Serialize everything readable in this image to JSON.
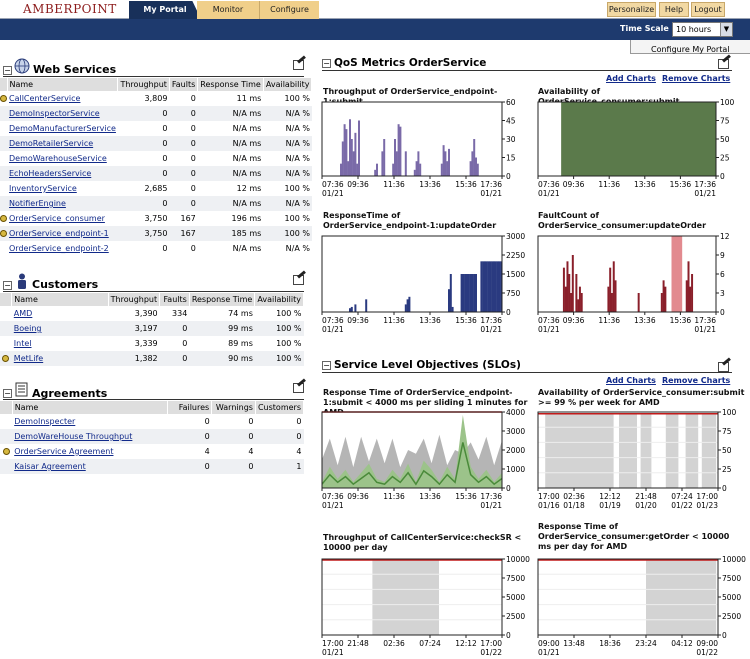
{
  "app": {
    "logo": "AMBERPOINT"
  },
  "tabs": [
    "My Portal",
    "Monitor",
    "Configure"
  ],
  "top_buttons": [
    "Personalize",
    "Help",
    "Logout"
  ],
  "time_scale": {
    "label": "Time Scale",
    "value": "10 hours"
  },
  "configure_link": "Configure My Portal",
  "web_services": {
    "title": "Web Services",
    "columns": [
      "Name",
      "Throughput",
      "Faults",
      "Response Time",
      "Availability"
    ],
    "rows": [
      {
        "status": true,
        "name": "CallCenterService",
        "throughput": "3,809",
        "faults": "0",
        "response": "11 ms",
        "availability": "100 %"
      },
      {
        "status": false,
        "name": "DemoInspectorService",
        "throughput": "0",
        "faults": "0",
        "response": "N/A ms",
        "availability": "N/A %"
      },
      {
        "status": false,
        "name": "DemoManufacturerService",
        "throughput": "0",
        "faults": "0",
        "response": "N/A ms",
        "availability": "N/A %"
      },
      {
        "status": false,
        "name": "DemoRetailerService",
        "throughput": "0",
        "faults": "0",
        "response": "N/A ms",
        "availability": "N/A %"
      },
      {
        "status": false,
        "name": "DemoWarehouseService",
        "throughput": "0",
        "faults": "0",
        "response": "N/A ms",
        "availability": "N/A %"
      },
      {
        "status": false,
        "name": "EchoHeadersService",
        "throughput": "0",
        "faults": "0",
        "response": "N/A ms",
        "availability": "N/A %"
      },
      {
        "status": false,
        "name": "InventoryService",
        "throughput": "2,685",
        "faults": "0",
        "response": "12 ms",
        "availability": "100 %"
      },
      {
        "status": false,
        "name": "NotifierEngine",
        "throughput": "0",
        "faults": "0",
        "response": "N/A ms",
        "availability": "N/A %"
      },
      {
        "status": true,
        "name": "OrderService_consumer",
        "throughput": "3,750",
        "faults": "167",
        "response": "196 ms",
        "availability": "100 %"
      },
      {
        "status": true,
        "name": "OrderService_endpoint-1",
        "throughput": "3,750",
        "faults": "167",
        "response": "185 ms",
        "availability": "100 %"
      },
      {
        "status": false,
        "name": "OrderService_endpoint-2",
        "throughput": "0",
        "faults": "0",
        "response": "N/A ms",
        "availability": "N/A %"
      }
    ]
  },
  "customers": {
    "title": "Customers",
    "columns": [
      "Name",
      "Throughput",
      "Faults",
      "Response Time",
      "Availability"
    ],
    "rows": [
      {
        "status": false,
        "name": "AMD",
        "throughput": "3,390",
        "faults": "334",
        "response": "74 ms",
        "availability": "100 %"
      },
      {
        "status": false,
        "name": "Boeing",
        "throughput": "3,197",
        "faults": "0",
        "response": "99 ms",
        "availability": "100 %"
      },
      {
        "status": false,
        "name": "Intel",
        "throughput": "3,339",
        "faults": "0",
        "response": "89 ms",
        "availability": "100 %"
      },
      {
        "status": true,
        "name": "MetLife",
        "throughput": "1,382",
        "faults": "0",
        "response": "90 ms",
        "availability": "100 %"
      }
    ]
  },
  "agreements": {
    "title": "Agreements",
    "columns": [
      "Name",
      "Failures",
      "Warnings",
      "Customers"
    ],
    "rows": [
      {
        "status": false,
        "name": "DemoInspecter",
        "failures": "0",
        "warnings": "0",
        "customers": "0"
      },
      {
        "status": false,
        "name": "DemoWareHouse Throughput",
        "failures": "0",
        "warnings": "0",
        "customers": "0"
      },
      {
        "status": true,
        "name": "OrderService Agreement",
        "failures": "4",
        "warnings": "4",
        "customers": "4"
      },
      {
        "status": false,
        "name": "Kaisar Agreement",
        "failures": "0",
        "warnings": "0",
        "customers": "1"
      }
    ]
  },
  "qos": {
    "title": "QoS Metrics OrderService",
    "add": "Add Charts",
    "remove": "Remove Charts"
  },
  "slo": {
    "title": "Service Level Objectives (SLOs)",
    "add": "Add Charts",
    "remove": "Remove Charts"
  },
  "chart_data": [
    {
      "id": "c1",
      "type": "bar",
      "title": "Throughput of OrderService_endpoint-1:submit",
      "color": "#7a6aa8",
      "x_ticks": [
        "07:36",
        "09:36",
        "11:36",
        "13:36",
        "15:36",
        "17:36"
      ],
      "x_date_left": "01/21",
      "x_date_right": "01/21",
      "y_ticks": [
        "60",
        "45",
        "30",
        "15",
        "0"
      ],
      "ylim": [
        0,
        60
      ],
      "values": [
        0,
        0,
        0,
        0,
        0,
        0,
        0,
        0,
        0,
        0,
        10,
        28,
        42,
        38,
        12,
        46,
        30,
        20,
        35,
        10,
        45,
        0,
        0,
        0,
        0,
        0,
        0,
        0,
        0,
        5,
        10,
        0,
        0,
        20,
        30,
        0,
        0,
        0,
        0,
        10,
        30,
        20,
        42,
        40,
        0,
        0,
        20,
        0,
        0,
        0,
        0,
        5,
        12,
        20,
        10,
        0,
        0,
        0,
        0,
        0,
        0,
        0,
        0,
        0,
        0,
        0,
        10,
        25,
        20,
        12,
        22,
        0,
        0,
        0,
        0,
        0,
        0,
        0,
        0,
        0,
        0,
        0,
        12,
        20,
        30,
        15,
        10,
        0,
        0,
        0,
        0,
        0,
        0,
        0,
        0,
        0,
        0,
        0,
        0,
        0
      ]
    },
    {
      "id": "c2",
      "type": "area",
      "title": "Availability of OrderService_consumer:submit",
      "color": "#5b7a4b",
      "x_ticks": [
        "07:36",
        "09:36",
        "11:36",
        "13:36",
        "15:36",
        "17:36"
      ],
      "x_date_left": "01/21",
      "x_date_right": "01/21",
      "y_ticks": [
        "100",
        "75",
        "50",
        "25",
        "0"
      ],
      "ylim": [
        0,
        100
      ],
      "start_fraction": 0.13,
      "value": 100
    },
    {
      "id": "c3",
      "type": "bar",
      "title": "ResponseTime of OrderService_endpoint-1:updateOrder",
      "color": "#2a3a80",
      "x_ticks": [
        "07:36",
        "09:36",
        "11:36",
        "13:36",
        "15:36",
        "17:36"
      ],
      "x_date_left": "01/21",
      "x_date_right": "01/21",
      "y_ticks": [
        "3000",
        "2250",
        "1500",
        "750",
        "0"
      ],
      "ylim": [
        0,
        3000
      ],
      "values": [
        0,
        0,
        0,
        0,
        0,
        0,
        0,
        0,
        0,
        0,
        0,
        0,
        0,
        0,
        0,
        150,
        200,
        0,
        300,
        0,
        0,
        0,
        0,
        0,
        500,
        0,
        0,
        0,
        0,
        0,
        0,
        0,
        0,
        0,
        0,
        0,
        0,
        0,
        0,
        0,
        0,
        0,
        0,
        0,
        0,
        0,
        300,
        500,
        600,
        0,
        0,
        0,
        0,
        0,
        0,
        0,
        0,
        0,
        0,
        0,
        0,
        0,
        0,
        0,
        0,
        0,
        0,
        0,
        0,
        0,
        900,
        1500,
        200,
        0,
        0,
        0,
        0,
        1500,
        1500,
        1500,
        1500,
        1500,
        1500,
        1500,
        1500,
        1500,
        0,
        0,
        2000,
        2000,
        2000,
        2000,
        2000,
        2000,
        2000,
        2000,
        2000,
        2000,
        2000,
        2000
      ]
    },
    {
      "id": "c4",
      "type": "bar",
      "title": "FaultCount of OrderService_consumer:updateOrder",
      "color": "#8a1f2a",
      "x_ticks": [
        "07:36",
        "09:36",
        "11:36",
        "13:36",
        "15:36",
        "17:36"
      ],
      "x_date_left": "01/21",
      "x_date_right": "01/21",
      "y_ticks": [
        "12",
        "9",
        "6",
        "3",
        "0"
      ],
      "ylim": [
        0,
        12
      ],
      "values": [
        0,
        0,
        0,
        0,
        0,
        0,
        0,
        0,
        0,
        0,
        0,
        0,
        0,
        0,
        7,
        4,
        8,
        6,
        3,
        9,
        0,
        6,
        2,
        4,
        3,
        0,
        0,
        0,
        0,
        0,
        0,
        0,
        0,
        0,
        0,
        0,
        0,
        0,
        0,
        4,
        7,
        3,
        8,
        5,
        0,
        0,
        0,
        0,
        0,
        0,
        0,
        0,
        0,
        0,
        0,
        0,
        3,
        0,
        0,
        0,
        0,
        0,
        0,
        0,
        0,
        0,
        0,
        0,
        0,
        3,
        5,
        4,
        0,
        0,
        0,
        0,
        0,
        0,
        0,
        0,
        0,
        0,
        0,
        5,
        8,
        4,
        6,
        0,
        0,
        0,
        0,
        0,
        0,
        0,
        0,
        0,
        0,
        0,
        0,
        0
      ],
      "highlight": {
        "start": 0.75,
        "end": 0.81,
        "color": "#e28a8f",
        "value": 12
      }
    },
    {
      "id": "s1",
      "type": "slo",
      "title": "Response Time of OrderService_endpoint-1:submit < 4000 ms per sliding 1 minutes for AMD",
      "color": "#4a8a3a",
      "x_ticks": [
        "07:36",
        "09:36",
        "11:36",
        "13:36",
        "15:36",
        "17:36"
      ],
      "x_date_left": "01/21",
      "x_date_right": "01/21",
      "y_ticks": [
        "4000",
        "3000",
        "2000",
        "1000",
        "0"
      ],
      "ylim": [
        0,
        4000
      ],
      "threshold": 4000,
      "envelope": [
        1500,
        2600,
        1200,
        2700,
        1100,
        2700,
        1400,
        2600,
        1300,
        2600,
        1100,
        2000,
        1800,
        2600,
        1300,
        2800,
        1200,
        2000,
        1800,
        2400,
        1500,
        2700,
        1200,
        2500
      ],
      "values": [
        200,
        700,
        300,
        600,
        200,
        500,
        800,
        300,
        200,
        600,
        300,
        800,
        200,
        900,
        600,
        200,
        700,
        300,
        2400,
        700,
        300,
        600,
        200,
        500
      ]
    },
    {
      "id": "s2",
      "type": "slo-band",
      "title": "Availability of OrderService_consumer:submit >= 99 % per week for AMD",
      "x_ticks": [
        "17:00",
        "02:36",
        "12:12",
        "21:48",
        "07:24",
        "17:00"
      ],
      "x_dates": [
        "01/16",
        "01/18",
        "01/19",
        "01/20",
        "01/22",
        "01/23"
      ],
      "y_ticks": [
        "100",
        "75",
        "50",
        "25",
        "0"
      ],
      "ylim": [
        0,
        100
      ],
      "threshold": 99,
      "bands": [
        [
          0.04,
          0.42
        ],
        [
          0.45,
          0.55
        ],
        [
          0.57,
          0.63
        ],
        [
          0.71,
          0.78
        ],
        [
          0.82,
          0.89
        ],
        [
          0.91,
          0.99
        ]
      ]
    },
    {
      "id": "s3",
      "type": "slo-band",
      "title": "Throughput of CallCenterService:checkSR < 10000 per day",
      "x_ticks": [
        "17:00",
        "21:48",
        "02:36",
        "07:24",
        "12:12",
        "17:00"
      ],
      "x_date_left": "01/21",
      "x_date_right": "01/22",
      "y_ticks": [
        "10000",
        "7500",
        "5000",
        "2500",
        "0"
      ],
      "ylim": [
        0,
        10000
      ],
      "threshold": 10000,
      "bands": [
        [
          0.28,
          0.65
        ]
      ]
    },
    {
      "id": "s4",
      "type": "slo-band",
      "title": "Response Time of OrderService_consumer:getOrder < 10000 ms per day for AMD",
      "x_ticks": [
        "09:00",
        "13:48",
        "18:36",
        "23:24",
        "04:12",
        "09:00"
      ],
      "x_date_left": "01/21",
      "x_date_right": "01/22",
      "y_ticks": [
        "10000",
        "7500",
        "5000",
        "2500",
        "0"
      ],
      "ylim": [
        0,
        10000
      ],
      "threshold": 10000,
      "bands": [
        [
          0.6,
          0.99
        ]
      ]
    }
  ]
}
